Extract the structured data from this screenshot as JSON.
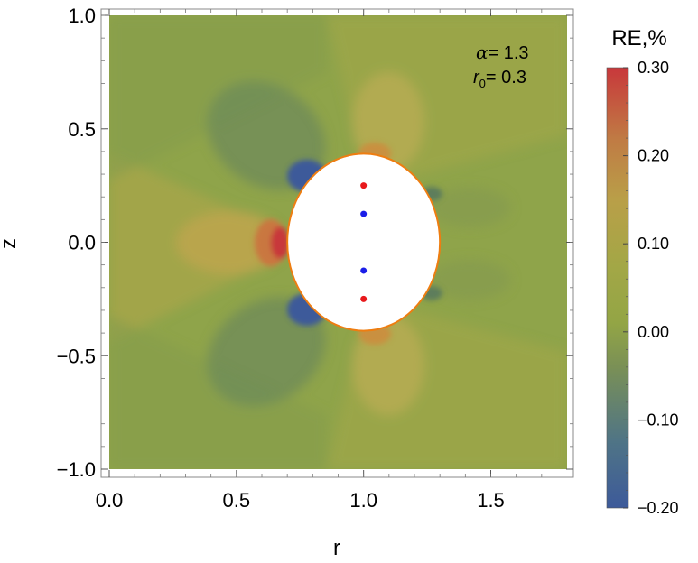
{
  "chart_data": {
    "type": "heatmap",
    "title": "",
    "xlabel": "r",
    "ylabel": "z",
    "xlim": [
      0.0,
      1.8
    ],
    "ylim": [
      -1.0,
      1.0
    ],
    "x_ticks": [
      {
        "value": 0.0,
        "label": "0.0"
      },
      {
        "value": 0.5,
        "label": "0.5"
      },
      {
        "value": 1.0,
        "label": "1.0"
      },
      {
        "value": 1.5,
        "label": "1.5"
      }
    ],
    "y_ticks": [
      {
        "value": 1.0,
        "label": "1.0"
      },
      {
        "value": 0.5,
        "label": "0.5"
      },
      {
        "value": 0.0,
        "label": "0.0"
      },
      {
        "value": -0.5,
        "label": "−0.5"
      },
      {
        "value": -1.0,
        "label": "−1.0"
      }
    ],
    "annotation": {
      "alpha_symbol": "α",
      "alpha_value": "= 1.3",
      "r0_symbol": "r",
      "r0_subscript": "0",
      "r0_value": "= 0.3"
    },
    "excluded_region": {
      "shape": "ellipse",
      "center": [
        1.0,
        0.0
      ],
      "r_semi_axis": 0.3,
      "z_semi_axis": 0.39
    },
    "points": [
      {
        "r": 1.0,
        "z": 0.25,
        "color": "#e8191c"
      },
      {
        "r": 1.0,
        "z": 0.125,
        "color": "#1a1ee8"
      },
      {
        "r": 1.0,
        "z": -0.125,
        "color": "#1a1ee8"
      },
      {
        "r": 1.0,
        "z": -0.25,
        "color": "#e8191c"
      }
    ],
    "colorbar": {
      "title": "RE,%",
      "min": -0.2,
      "max": 0.3,
      "ticks": [
        {
          "value": 0.3,
          "label": "0.30"
        },
        {
          "value": 0.2,
          "label": "0.20"
        },
        {
          "value": 0.1,
          "label": "0.10"
        },
        {
          "value": 0.0,
          "label": "0.00"
        },
        {
          "value": -0.1,
          "label": "−0.10"
        },
        {
          "value": -0.2,
          "label": "−0.20"
        }
      ]
    },
    "colors": {
      "background_field": "#8fa44a",
      "ellipse_stroke": "#ee7d11",
      "positive_max": "#c8383b",
      "negative_min": "#3d5a9a"
    }
  }
}
